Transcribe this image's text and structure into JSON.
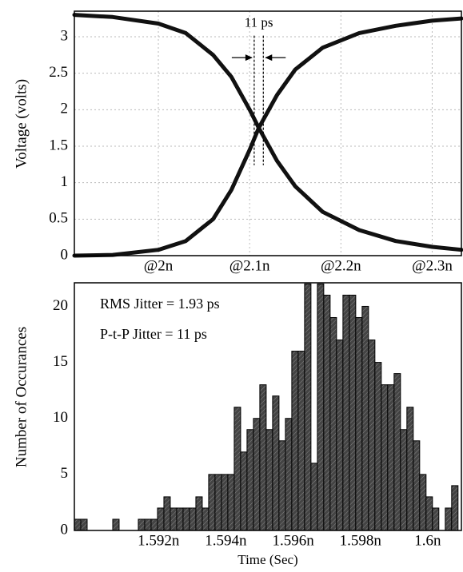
{
  "chart_data": [
    {
      "type": "line",
      "y_label": "Voltage (volts)",
      "x": [
        1.908,
        1.95,
        2.0,
        2.03,
        2.06,
        2.08,
        2.1,
        2.11,
        2.13,
        2.15,
        2.18,
        2.22,
        2.26,
        2.3,
        2.332
      ],
      "series": [
        {
          "color": "#111111",
          "values": [
            3.3,
            3.27,
            3.18,
            3.05,
            2.75,
            2.45,
            2.0,
            1.75,
            1.3,
            0.95,
            0.6,
            0.35,
            0.2,
            0.12,
            0.08
          ]
        },
        {
          "color": "#111111",
          "values": [
            0.0,
            0.01,
            0.08,
            0.2,
            0.5,
            0.9,
            1.45,
            1.75,
            2.2,
            2.55,
            2.85,
            3.05,
            3.15,
            3.22,
            3.25
          ]
        }
      ],
      "xlim": [
        1.908,
        2.332
      ],
      "xticks": [
        {
          "value": 2.0,
          "label": "@2n"
        },
        {
          "value": 2.1,
          "label": "@2.1n"
        },
        {
          "value": 2.2,
          "label": "@2.2n"
        },
        {
          "value": 2.3,
          "label": "@2.3n"
        }
      ],
      "ylim": [
        0,
        3.35
      ],
      "yticks": [
        0,
        0.5,
        1,
        1.5,
        2,
        2.5,
        3
      ],
      "grid": true,
      "annotation": {
        "text": "11 ps",
        "x": [
          2.105,
          2.115
        ]
      }
    },
    {
      "type": "histogram",
      "x_label": "Time (Sec)",
      "y_label": "Number of Occurances",
      "bins": [
        1.5895,
        1.58969,
        1.58988,
        1.59007,
        1.59026,
        1.59045,
        1.59064,
        1.59083,
        1.59102,
        1.59121,
        1.5914,
        1.59159,
        1.59178,
        1.59197,
        1.59216,
        1.59235,
        1.59254,
        1.59273,
        1.59292,
        1.59311,
        1.5933,
        1.59349,
        1.59368,
        1.59387,
        1.59406,
        1.59425,
        1.59444,
        1.59463,
        1.59482,
        1.59501,
        1.5952,
        1.59539,
        1.59558,
        1.59577,
        1.59596,
        1.59615,
        1.59634,
        1.59653,
        1.59672,
        1.59691,
        1.5971,
        1.59729,
        1.59748,
        1.59767,
        1.59786,
        1.59805,
        1.59824,
        1.59843,
        1.59862,
        1.59881,
        1.599,
        1.59919,
        1.59938,
        1.59957,
        1.59976,
        1.59995,
        1.60014,
        1.60033,
        1.60052,
        1.60071,
        1.6009
      ],
      "values": [
        1,
        1,
        0,
        0,
        0,
        0,
        1,
        0,
        0,
        0,
        1,
        1,
        1,
        2,
        3,
        2,
        2,
        2,
        2,
        3,
        2,
        5,
        5,
        5,
        5,
        11,
        7,
        9,
        10,
        13,
        9,
        12,
        8,
        10,
        16,
        16,
        22,
        6,
        22,
        21,
        19,
        17,
        21,
        21,
        19,
        20,
        17,
        15,
        13,
        13,
        14,
        9,
        11,
        8,
        5,
        3,
        2,
        0,
        2,
        4
      ],
      "color": "#444444",
      "xlim": [
        1.5895,
        1.601
      ],
      "xticks": [
        {
          "value": 1.592,
          "label": "1.592n"
        },
        {
          "value": 1.594,
          "label": "1.594n"
        },
        {
          "value": 1.596,
          "label": "1.596n"
        },
        {
          "value": 1.598,
          "label": "1.598n"
        },
        {
          "value": 1.6,
          "label": "1.6n"
        }
      ],
      "ylim": [
        0,
        22.1
      ],
      "yticks": [
        0,
        5,
        10,
        15,
        20
      ],
      "grid": false,
      "annotations": [
        "RMS Jitter = 1.93 ps",
        "P-t-P Jitter = 11 ps"
      ]
    }
  ]
}
